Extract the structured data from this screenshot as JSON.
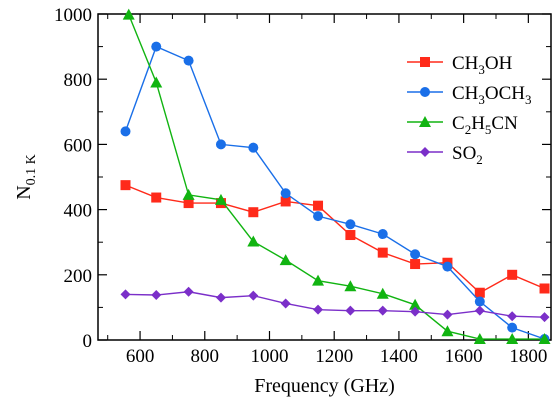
{
  "chart_data": {
    "type": "line",
    "xlabel": "Frequency (GHz)",
    "ylabel": {
      "main": "N",
      "sub": "0.1 K"
    },
    "xlim": [
      470,
      1870
    ],
    "ylim": [
      0,
      1000
    ],
    "x_ticks": [
      600,
      800,
      1000,
      1200,
      1400,
      1600,
      1800
    ],
    "y_ticks": [
      0,
      200,
      400,
      600,
      800,
      1000
    ],
    "grid": false,
    "legend_position": "top-right",
    "series": [
      {
        "name": "CH3OH",
        "label_parts": [
          [
            "CH",
            ""
          ],
          [
            "3",
            "sub"
          ],
          [
            "OH",
            ""
          ]
        ],
        "color": "#ff2a1a",
        "marker": "square",
        "x": [
          555,
          650,
          750,
          850,
          950,
          1050,
          1150,
          1250,
          1350,
          1450,
          1550,
          1650,
          1750,
          1850
        ],
        "y": [
          475,
          437,
          420,
          420,
          392,
          425,
          412,
          322,
          268,
          233,
          237,
          145,
          200,
          158
        ]
      },
      {
        "name": "CH3OCH3",
        "label_parts": [
          [
            "CH",
            ""
          ],
          [
            "3",
            "sub"
          ],
          [
            "OCH",
            ""
          ],
          [
            "3",
            "sub"
          ]
        ],
        "color": "#1a6fe8",
        "marker": "circle",
        "x": [
          555,
          650,
          750,
          850,
          950,
          1050,
          1150,
          1250,
          1350,
          1450,
          1550,
          1650,
          1750,
          1850
        ],
        "y": [
          640,
          900,
          857,
          600,
          590,
          450,
          380,
          355,
          325,
          263,
          225,
          118,
          38,
          3
        ]
      },
      {
        "name": "C2H5CN",
        "label_parts": [
          [
            "C",
            ""
          ],
          [
            "2",
            "sub"
          ],
          [
            "H",
            ""
          ],
          [
            "5",
            "sub"
          ],
          [
            "CN",
            ""
          ]
        ],
        "color": "#11b411",
        "marker": "triangle",
        "x": [
          565,
          650,
          750,
          850,
          950,
          1050,
          1150,
          1250,
          1350,
          1450,
          1550,
          1650,
          1750,
          1850
        ],
        "y": [
          998,
          790,
          445,
          430,
          302,
          245,
          182,
          165,
          142,
          108,
          27,
          3,
          3,
          3
        ]
      },
      {
        "name": "SO2",
        "label_parts": [
          [
            "SO",
            ""
          ],
          [
            "2",
            "sub"
          ]
        ],
        "color": "#7b2fc9",
        "marker": "diamond",
        "x": [
          555,
          650,
          750,
          850,
          950,
          1050,
          1150,
          1250,
          1350,
          1450,
          1550,
          1650,
          1750,
          1850
        ],
        "y": [
          140,
          138,
          148,
          130,
          136,
          112,
          93,
          90,
          90,
          87,
          78,
          90,
          73,
          70
        ]
      }
    ]
  }
}
